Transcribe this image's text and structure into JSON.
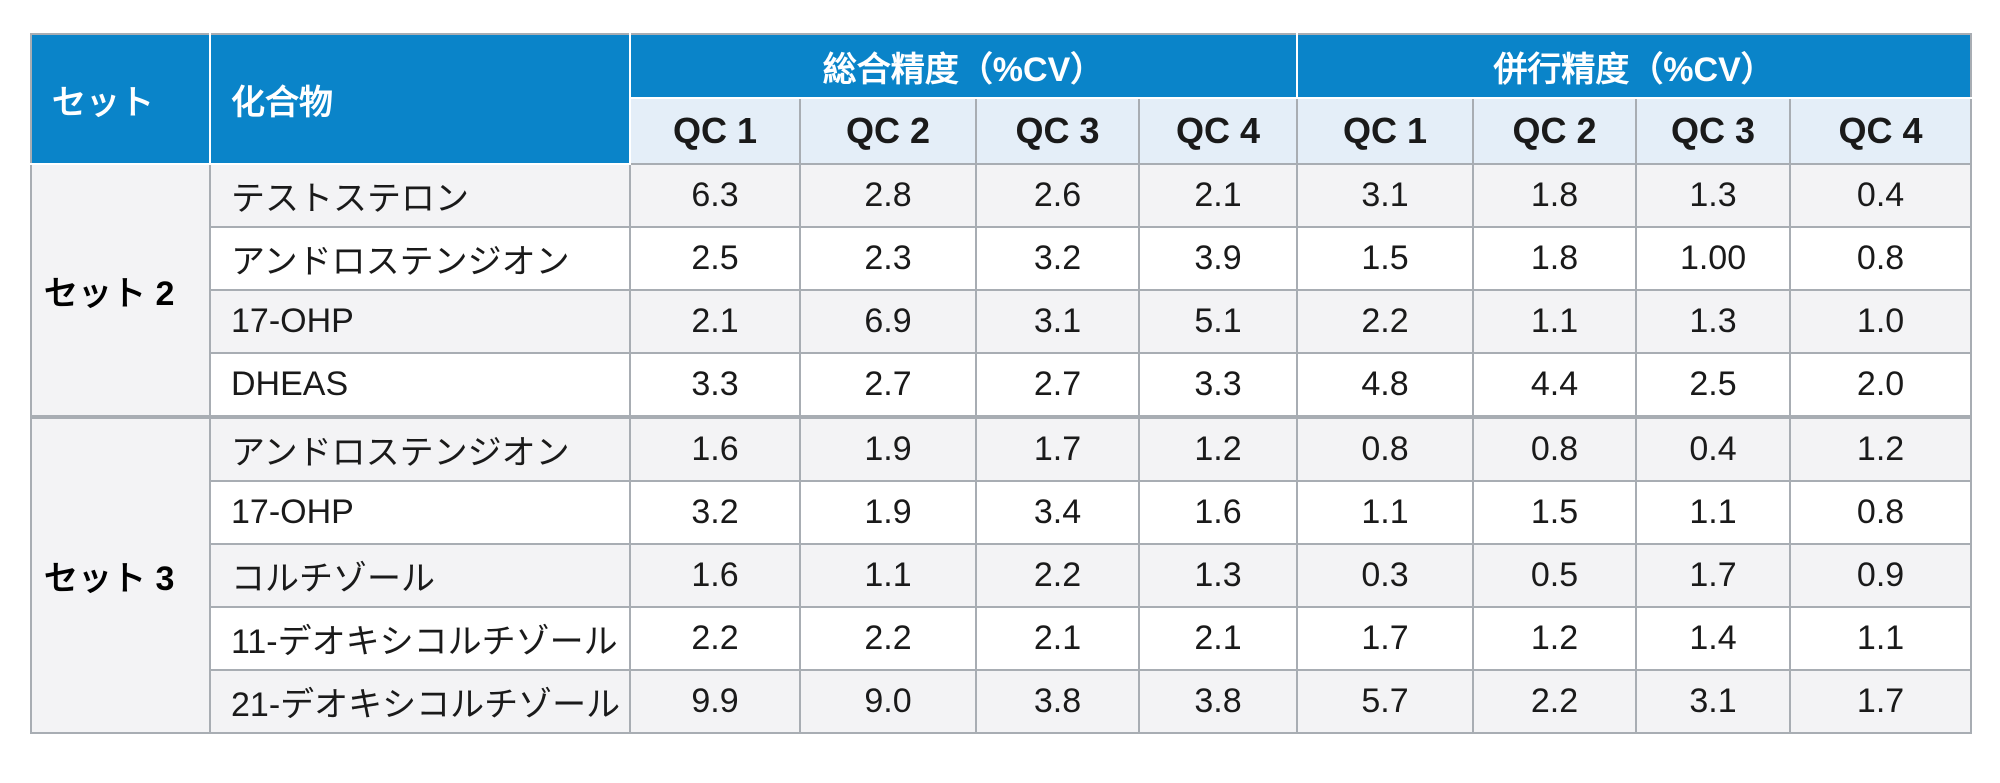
{
  "header": {
    "set_label": "セット",
    "compound_label": "化合物",
    "group1": "総合精度（%CV）",
    "group2": "併行精度（%CV）",
    "qc_labels": [
      "QC 1",
      "QC 2",
      "QC 3",
      "QC 4",
      "QC 1",
      "QC 2",
      "QC 3",
      "QC 4"
    ]
  },
  "chart_data": {
    "type": "table",
    "column_groups": [
      {
        "name": "総合精度（%CV）",
        "columns": [
          "QC 1",
          "QC 2",
          "QC 3",
          "QC 4"
        ]
      },
      {
        "name": "併行精度（%CV）",
        "columns": [
          "QC 1",
          "QC 2",
          "QC 3",
          "QC 4"
        ]
      }
    ],
    "sets": [
      {
        "name": "セット 2",
        "rows": [
          {
            "compound": "テストステロン",
            "values": [
              "6.3",
              "2.8",
              "2.6",
              "2.1",
              "3.1",
              "1.8",
              "1.3",
              "0.4"
            ]
          },
          {
            "compound": "アンドロステンジオン",
            "values": [
              "2.5",
              "2.3",
              "3.2",
              "3.9",
              "1.5",
              "1.8",
              "1.00",
              "0.8"
            ]
          },
          {
            "compound": "17-OHP",
            "values": [
              "2.1",
              "6.9",
              "3.1",
              "5.1",
              "2.2",
              "1.1",
              "1.3",
              "1.0"
            ]
          },
          {
            "compound": "DHEAS",
            "values": [
              "3.3",
              "2.7",
              "2.7",
              "3.3",
              "4.8",
              "4.4",
              "2.5",
              "2.0"
            ]
          }
        ]
      },
      {
        "name": "セット 3",
        "rows": [
          {
            "compound": "アンドロステンジオン",
            "values": [
              "1.6",
              "1.9",
              "1.7",
              "1.2",
              "0.8",
              "0.8",
              "0.4",
              "1.2"
            ]
          },
          {
            "compound": "17-OHP",
            "values": [
              "3.2",
              "1.9",
              "3.4",
              "1.6",
              "1.1",
              "1.5",
              "1.1",
              "0.8"
            ]
          },
          {
            "compound": "コルチゾール",
            "values": [
              "1.6",
              "1.1",
              "2.2",
              "1.3",
              "0.3",
              "0.5",
              "1.7",
              "0.9"
            ]
          },
          {
            "compound": "11-デオキシコルチゾール",
            "values": [
              "2.2",
              "2.2",
              "2.1",
              "2.1",
              "1.7",
              "1.2",
              "1.4",
              "1.1"
            ]
          },
          {
            "compound": "21-デオキシコルチゾール",
            "values": [
              "9.9",
              "9.0",
              "3.8",
              "3.8",
              "5.7",
              "2.2",
              "3.1",
              "1.7"
            ]
          }
        ]
      }
    ]
  }
}
